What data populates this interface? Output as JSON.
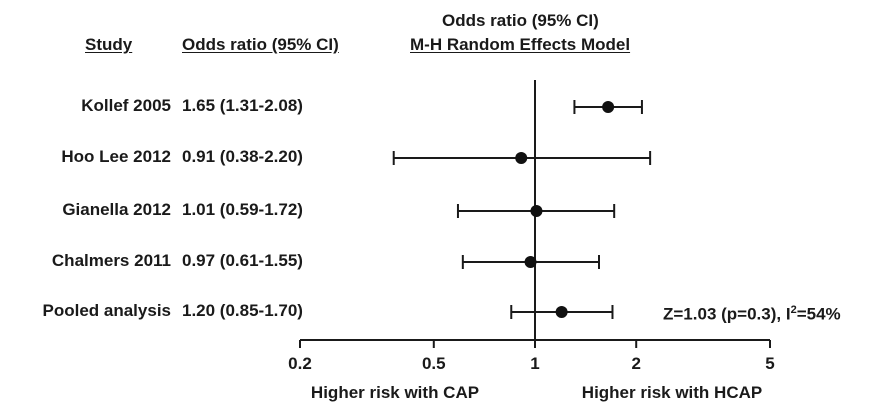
{
  "header": {
    "study": "Study",
    "or_ci": "Odds ratio (95% CI)",
    "model_line1": "Odds ratio (95% CI)",
    "model_line2": "M-H Random Effects Model"
  },
  "footer": {
    "left_direction": "Higher risk with CAP",
    "right_direction": "Higher risk with HCAP",
    "heterogeneity_prefix": "Z=1.03 (p=0.3), I",
    "heterogeneity_sup": "2",
    "heterogeneity_suffix": "=54%"
  },
  "chart_data": {
    "type": "forest",
    "scale": "log",
    "xlim": [
      0.2,
      5
    ],
    "reference_line": 1,
    "ticks": [
      0.2,
      0.5,
      1,
      2,
      5
    ],
    "tick_labels": [
      "0.2",
      "0.5",
      "1",
      "2",
      "5"
    ],
    "studies": [
      {
        "label": "Kollef 2005",
        "or_text": "1.65 (1.31-2.08)",
        "or": 1.65,
        "lo": 1.31,
        "hi": 2.08
      },
      {
        "label": "Hoo Lee 2012",
        "or_text": "0.91 (0.38-2.20)",
        "or": 0.91,
        "lo": 0.38,
        "hi": 2.2
      },
      {
        "label": "Gianella 2012",
        "or_text": "1.01 (0.59-1.72)",
        "or": 1.01,
        "lo": 0.59,
        "hi": 1.72
      },
      {
        "label": "Chalmers 2011",
        "or_text": "0.97 (0.61-1.55)",
        "or": 0.97,
        "lo": 0.61,
        "hi": 1.55
      },
      {
        "label": "Pooled analysis",
        "or_text": "1.20 (0.85-1.70)",
        "or": 1.2,
        "lo": 0.85,
        "hi": 1.7
      }
    ]
  }
}
